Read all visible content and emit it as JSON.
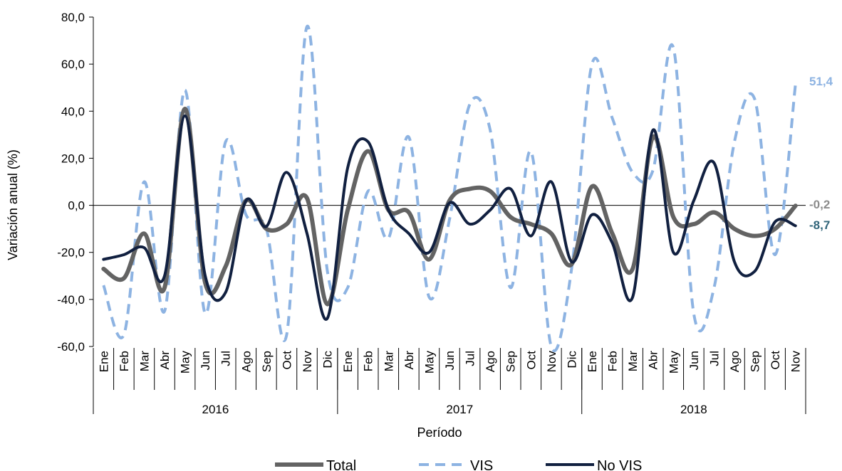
{
  "chart_data": {
    "type": "line",
    "xlabel": "Período",
    "ylabel": "Variación anual (%)",
    "ylim": [
      -60,
      80
    ],
    "yticks": [
      "80,0",
      "60,0",
      "40,0",
      "20,0",
      "0,0",
      "-20,0",
      "-40,0",
      "-60,0"
    ],
    "years": [
      {
        "label": "2016",
        "months": 12
      },
      {
        "label": "2017",
        "months": 12
      },
      {
        "label": "2018",
        "months": 11
      }
    ],
    "categories": [
      "Ene",
      "Feb",
      "Mar",
      "Abr",
      "May",
      "Jun",
      "Jul",
      "Ago",
      "Sep",
      "Oct",
      "Nov",
      "Dic",
      "Ene",
      "Feb",
      "Mar",
      "Abr",
      "May",
      "Jun",
      "Jul",
      "Ago",
      "Sep",
      "Oct",
      "Nov",
      "Dic",
      "Ene",
      "Feb",
      "Mar",
      "Abr",
      "May",
      "Jun",
      "Jul",
      "Ago",
      "Sep",
      "Oct",
      "Nov"
    ],
    "series": [
      {
        "name": "VIS",
        "color": "#8DB3E2",
        "dash": true,
        "values": [
          -34,
          -55,
          10,
          -45,
          49,
          -46,
          27,
          -4,
          -10,
          -55,
          76,
          -28,
          -35,
          6,
          -14,
          29,
          -39,
          -6,
          43,
          32,
          -35,
          23,
          -60,
          -27,
          60,
          37,
          14,
          15,
          67,
          -46,
          -35,
          27,
          45,
          -21,
          51.4
        ],
        "end_label": "51,4"
      },
      {
        "name": "Total",
        "color": "#636363",
        "dash": false,
        "values": [
          -27,
          -31,
          -12,
          -35,
          41,
          -33,
          -26,
          2,
          -10,
          -8,
          3,
          -42,
          -2,
          23,
          -2,
          -3,
          -23,
          2,
          7,
          6,
          -5,
          -8,
          -12,
          -25,
          8,
          -12,
          -27,
          29,
          -5,
          -8,
          -3,
          -10,
          -13,
          -10,
          -0.2
        ],
        "end_label": "-0,2"
      },
      {
        "name": "No VIS",
        "color": "#112040",
        "dash": false,
        "values": [
          -23,
          -21,
          -18,
          -30,
          38,
          -30,
          -37,
          2,
          -9,
          14,
          -12,
          -48,
          16,
          27,
          -2,
          -12,
          -20,
          1,
          -8,
          -2,
          7,
          -13,
          10,
          -24,
          -4,
          -16,
          -39,
          32,
          -20,
          2,
          18,
          -24,
          -28,
          -7,
          -8.7
        ],
        "end_label": "-8,7"
      }
    ],
    "legend": {
      "position": "bottom",
      "items": [
        {
          "name": "Total",
          "color": "#636363",
          "dash": false
        },
        {
          "name": "VIS",
          "color": "#8DB3E2",
          "dash": true
        },
        {
          "name": "No VIS",
          "color": "#112040",
          "dash": false
        }
      ]
    },
    "end_label_colors": {
      "VIS": "#8DB3E2",
      "Total": "#8C8C8C",
      "No VIS": "#31657A"
    }
  }
}
